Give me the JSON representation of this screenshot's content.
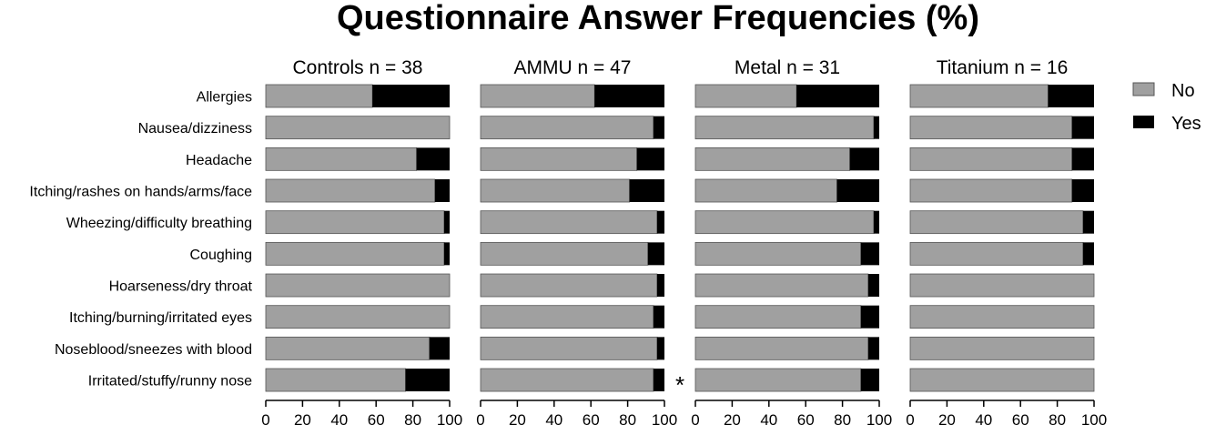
{
  "chart_data": {
    "type": "bar",
    "orientation": "horizontal",
    "stacked": true,
    "title": "Questionnaire Answer Frequencies (%)",
    "xlim": [
      0,
      100
    ],
    "xticks": [
      "0",
      "20",
      "40",
      "60",
      "80",
      "100"
    ],
    "legend": {
      "placement": "right",
      "entries": [
        {
          "name": "No",
          "color": "#a0a0a0"
        },
        {
          "name": "Yes",
          "color": "#000000"
        }
      ]
    },
    "categories": [
      "Allergies",
      "Nausea/dizziness",
      "Headache",
      "Itching/rashes on hands/arms/face",
      "Wheezing/difficulty breathing",
      "Coughing",
      "Hoarseness/dry throat",
      "Itching/burning/irritated eyes",
      "Noseblood/sneezes with blood",
      "Irritated/stuffy/runny nose"
    ],
    "panels": [
      {
        "title": "Controls n = 38",
        "series": [
          {
            "name": "No",
            "values": [
              58,
              100,
              82,
              92,
              97,
              97,
              100,
              100,
              89,
              76
            ]
          },
          {
            "name": "Yes",
            "values": [
              42,
              0,
              18,
              8,
              3,
              3,
              0,
              0,
              11,
              24
            ]
          }
        ],
        "annotation": ""
      },
      {
        "title": "AMMU n = 47",
        "series": [
          {
            "name": "No",
            "values": [
              62,
              94,
              85,
              81,
              96,
              91,
              96,
              94,
              96,
              94
            ]
          },
          {
            "name": "Yes",
            "values": [
              38,
              6,
              15,
              19,
              4,
              9,
              4,
              6,
              4,
              6
            ]
          }
        ],
        "annotation": "*"
      },
      {
        "title": "Metal n = 31",
        "series": [
          {
            "name": "No",
            "values": [
              55,
              97,
              84,
              77,
              97,
              90,
              94,
              90,
              94,
              90
            ]
          },
          {
            "name": "Yes",
            "values": [
              45,
              3,
              16,
              23,
              3,
              10,
              6,
              10,
              6,
              10
            ]
          }
        ],
        "annotation": ""
      },
      {
        "title": "Titanium n = 16",
        "series": [
          {
            "name": "No",
            "values": [
              75,
              88,
              88,
              88,
              94,
              94,
              100,
              100,
              100,
              100
            ]
          },
          {
            "name": "Yes",
            "values": [
              25,
              12,
              12,
              12,
              6,
              6,
              0,
              0,
              0,
              0
            ]
          }
        ],
        "annotation": ""
      }
    ]
  }
}
